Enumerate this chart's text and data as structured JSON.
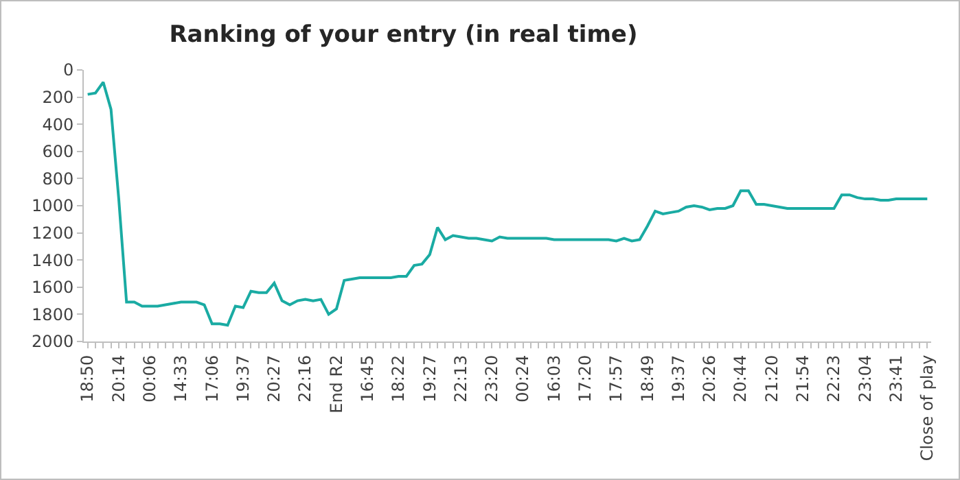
{
  "chart_data": {
    "type": "line",
    "title": "Ranking of your entry (in real time)",
    "categories": [
      "18:50",
      null,
      null,
      null,
      "20:14",
      null,
      null,
      null,
      "00:06",
      null,
      null,
      null,
      "14:33",
      null,
      null,
      null,
      "17:06",
      null,
      null,
      null,
      "19:37",
      null,
      null,
      null,
      "20:27",
      null,
      null,
      null,
      "22:16",
      null,
      null,
      null,
      "End R2",
      null,
      null,
      null,
      "16:45",
      null,
      null,
      null,
      "18:22",
      null,
      null,
      null,
      "19:27",
      null,
      null,
      null,
      "22:13",
      null,
      null,
      null,
      "23:20",
      null,
      null,
      null,
      "00:24",
      null,
      null,
      null,
      "16:03",
      null,
      null,
      null,
      "17:20",
      null,
      null,
      null,
      "17:57",
      null,
      null,
      null,
      "18:49",
      null,
      null,
      null,
      "19:37",
      null,
      null,
      null,
      "20:26",
      null,
      null,
      null,
      "20:44",
      null,
      null,
      null,
      "21:20",
      null,
      null,
      null,
      "21:54",
      null,
      null,
      null,
      "22:23",
      null,
      null,
      null,
      "23:04",
      null,
      null,
      null,
      "23:41",
      null,
      null,
      null,
      "Close of play"
    ],
    "series": [
      {
        "color": "#1aaba3",
        "values": [
          180,
          170,
          90,
          290,
          950,
          1710,
          1710,
          1740,
          1740,
          1740,
          1730,
          1720,
          1710,
          1710,
          1710,
          1730,
          1870,
          1870,
          1880,
          1740,
          1750,
          1630,
          1640,
          1640,
          1570,
          1700,
          1730,
          1700,
          1690,
          1700,
          1690,
          1800,
          1760,
          1550,
          1540,
          1530,
          1530,
          1530,
          1530,
          1530,
          1520,
          1520,
          1440,
          1430,
          1360,
          1160,
          1250,
          1220,
          1230,
          1240,
          1240,
          1250,
          1260,
          1230,
          1240,
          1240,
          1240,
          1240,
          1240,
          1240,
          1250,
          1250,
          1250,
          1250,
          1250,
          1250,
          1250,
          1250,
          1260,
          1240,
          1260,
          1250,
          1150,
          1040,
          1060,
          1050,
          1040,
          1010,
          1000,
          1010,
          1030,
          1020,
          1020,
          1000,
          890,
          890,
          990,
          990,
          1000,
          1010,
          1020,
          1020,
          1020,
          1020,
          1020,
          1020,
          1020,
          920,
          920,
          940,
          950,
          950,
          960,
          960,
          950,
          950,
          950,
          950,
          950
        ]
      }
    ],
    "ylim": [
      2000,
      0
    ],
    "yticks": [
      0,
      200,
      400,
      600,
      800,
      1000,
      1200,
      1400,
      1600,
      1800,
      2000
    ],
    "grid": false,
    "marker": "none",
    "line_style": "solid"
  }
}
